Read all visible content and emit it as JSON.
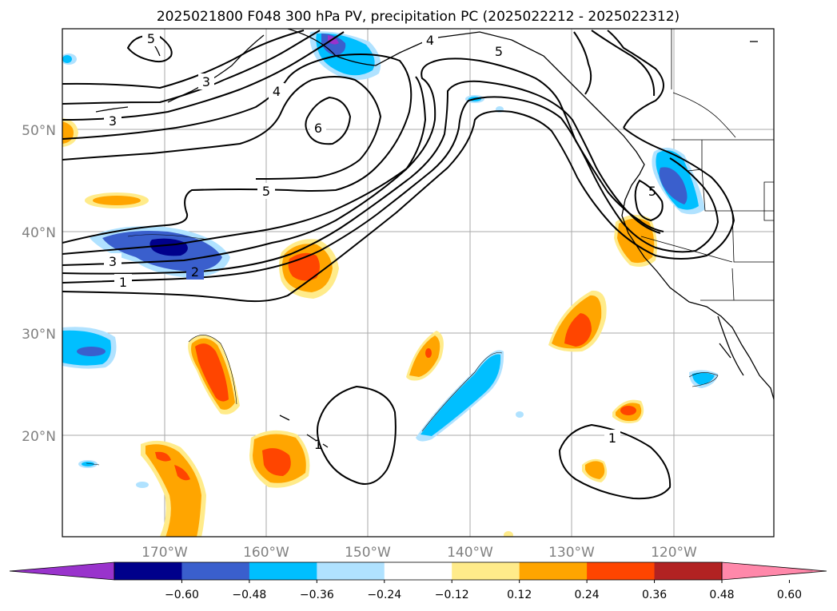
{
  "title": "2025021800 F048 300 hPa PV, precipitation PC (2025022212 - 2025022312)",
  "lon_labels": [
    "170°W",
    "160°W",
    "150°W",
    "140°W",
    "130°W",
    "120°W"
  ],
  "lat_labels": [
    "50°N",
    "40°N",
    "30°N",
    "20°N"
  ],
  "colorbar": {
    "ticks": [
      "−0.60",
      "−0.48",
      "−0.36",
      "−0.24",
      "−0.12",
      "0.12",
      "0.24",
      "0.36",
      "0.48",
      "0.60"
    ],
    "colors": [
      "#9933cc",
      "#00008b",
      "#3a5fcd",
      "#00bfff",
      "#b0e2ff",
      "#ffffff",
      "#ffeb8a",
      "#ffa500",
      "#ff4500",
      "#b22222",
      "#ff88aa"
    ]
  },
  "contour_labels": {
    "c5_nw": "5",
    "c3_nw": "3",
    "c4_n": "4",
    "c4_nw": "4",
    "c5_n": "5",
    "c3_w": "3",
    "c6": "6",
    "c5_mid": "5",
    "c3_sw": "3",
    "c2": "2",
    "c1_w": "1",
    "c5_east": "5",
    "c1_hawaii": "1",
    "c1_east": "1"
  },
  "colors": {
    "purple": "#9933cc",
    "navy": "#00008b",
    "royal": "#3a5fcd",
    "sky": "#00bfff",
    "pale_blue": "#b0e2ff",
    "yellow": "#ffeb8a",
    "orange": "#ffa500",
    "red_orange": "#ff4500"
  }
}
